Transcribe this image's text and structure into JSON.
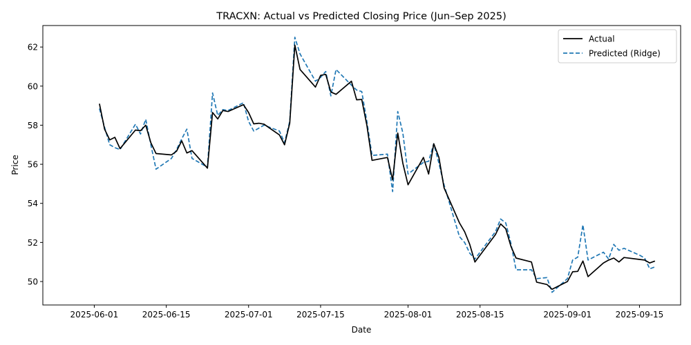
{
  "chart_data": {
    "type": "line",
    "title": "TRACXN: Actual vs Predicted Closing Price (Jun–Sep 2025)",
    "xlabel": "Date",
    "ylabel": "Price",
    "xlim": [
      "2025-05-22",
      "2025-09-23"
    ],
    "ylim": [
      48.8,
      63.1
    ],
    "xticks": [
      "2025-06-01",
      "2025-06-15",
      "2025-07-01",
      "2025-07-15",
      "2025-08-01",
      "2025-08-15",
      "2025-09-01",
      "2025-09-15"
    ],
    "yticks": [
      50,
      52,
      54,
      56,
      58,
      60,
      62
    ],
    "grid": false,
    "legend_position": "top-right",
    "x": [
      "2025-06-02",
      "2025-06-03",
      "2025-06-04",
      "2025-06-05",
      "2025-06-06",
      "2025-06-09",
      "2025-06-10",
      "2025-06-11",
      "2025-06-12",
      "2025-06-13",
      "2025-06-16",
      "2025-06-17",
      "2025-06-18",
      "2025-06-19",
      "2025-06-20",
      "2025-06-23",
      "2025-06-24",
      "2025-06-25",
      "2025-06-26",
      "2025-06-27",
      "2025-06-30",
      "2025-07-01",
      "2025-07-02",
      "2025-07-03",
      "2025-07-04",
      "2025-07-07",
      "2025-07-08",
      "2025-07-09",
      "2025-07-10",
      "2025-07-11",
      "2025-07-14",
      "2025-07-15",
      "2025-07-16",
      "2025-07-17",
      "2025-07-18",
      "2025-07-21",
      "2025-07-22",
      "2025-07-23",
      "2025-07-24",
      "2025-07-25",
      "2025-07-28",
      "2025-07-29",
      "2025-07-30",
      "2025-07-31",
      "2025-08-01",
      "2025-08-04",
      "2025-08-05",
      "2025-08-06",
      "2025-08-07",
      "2025-08-08",
      "2025-08-11",
      "2025-08-12",
      "2025-08-13",
      "2025-08-14",
      "2025-08-18",
      "2025-08-19",
      "2025-08-20",
      "2025-08-21",
      "2025-08-22",
      "2025-08-25",
      "2025-08-26",
      "2025-08-28",
      "2025-08-29",
      "2025-09-01",
      "2025-09-02",
      "2025-09-03",
      "2025-09-04",
      "2025-09-05",
      "2025-09-08",
      "2025-09-09",
      "2025-09-10",
      "2025-09-11",
      "2025-09-12",
      "2025-09-15",
      "2025-09-16",
      "2025-09-17",
      "2025-09-18"
    ],
    "series": [
      {
        "name": "Actual",
        "color": "#000000",
        "style": "solid",
        "values": [
          59.1,
          57.8,
          57.25,
          57.38,
          56.8,
          57.75,
          57.72,
          58.0,
          57.1,
          56.55,
          56.48,
          56.67,
          57.2,
          56.58,
          56.7,
          55.8,
          58.65,
          58.32,
          58.75,
          58.7,
          59.05,
          58.65,
          58.07,
          58.1,
          58.05,
          57.5,
          57.0,
          58.1,
          62.1,
          60.85,
          59.95,
          60.55,
          60.6,
          59.7,
          59.58,
          60.25,
          59.3,
          59.32,
          58.0,
          56.2,
          56.35,
          55.2,
          57.6,
          56.05,
          54.95,
          56.35,
          55.5,
          57.05,
          56.35,
          54.8,
          53.0,
          52.55,
          51.9,
          51.0,
          52.4,
          52.95,
          52.7,
          51.8,
          51.2,
          51.0,
          49.97,
          49.85,
          49.6,
          50.0,
          50.5,
          50.52,
          51.05,
          50.25,
          50.95,
          51.1,
          51.2,
          51.0,
          51.23,
          51.13,
          51.1,
          50.95,
          51.05
        ]
      },
      {
        "name": "Predicted (Ridge)",
        "color": "#1f77b4",
        "style": "dashed",
        "values": [
          58.85,
          57.9,
          57.0,
          56.85,
          56.75,
          58.05,
          57.55,
          58.3,
          57.0,
          55.75,
          56.3,
          56.75,
          57.3,
          57.8,
          56.3,
          55.85,
          59.65,
          58.5,
          58.8,
          58.75,
          59.15,
          58.2,
          57.7,
          57.85,
          58.0,
          57.7,
          57.1,
          58.2,
          62.5,
          61.65,
          60.25,
          60.45,
          60.75,
          59.5,
          60.85,
          60.05,
          59.8,
          59.72,
          58.2,
          56.45,
          56.52,
          54.6,
          58.7,
          57.6,
          55.5,
          56.1,
          56.15,
          57.05,
          56.05,
          54.95,
          52.3,
          52.0,
          51.45,
          51.15,
          52.55,
          53.2,
          53.0,
          51.95,
          50.6,
          50.6,
          50.15,
          50.2,
          49.45,
          50.15,
          51.1,
          51.25,
          52.9,
          51.1,
          51.5,
          51.15,
          51.9,
          51.6,
          51.7,
          51.35,
          51.2,
          50.65,
          50.75
        ]
      }
    ]
  }
}
